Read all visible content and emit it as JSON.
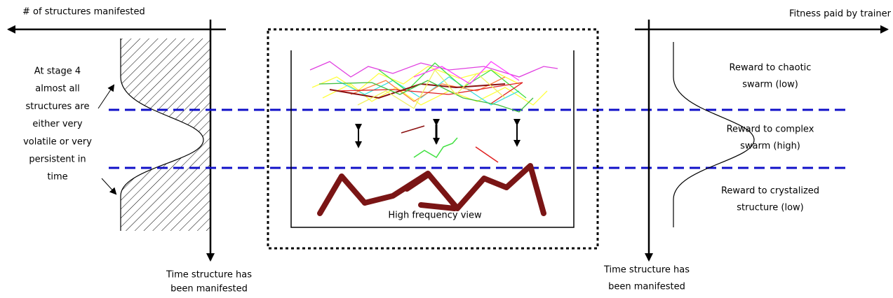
{
  "left_panel": {
    "axis_label": "# of structures manifested",
    "annotation": [
      "At stage 4",
      "almost all",
      "structures are",
      "either very",
      "volatile or very",
      "persistent in",
      "time"
    ],
    "time_label": [
      "Time structure has",
      "been manifested"
    ]
  },
  "center_panel": {
    "label": "High frequency view"
  },
  "right_panel": {
    "axis_label": "Fitness paid by trainer",
    "rewards": [
      [
        "Reward to chaotic",
        "swarm (low)"
      ],
      [
        "Reward to complex",
        "swarm (high)"
      ],
      [
        "Reward to crystalized",
        "structure (low)"
      ]
    ],
    "time_label": [
      "Time structure has",
      "been manifested"
    ]
  }
}
